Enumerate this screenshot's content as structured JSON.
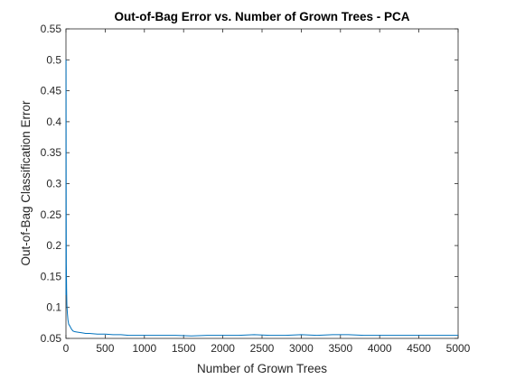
{
  "chart_data": {
    "type": "line",
    "title": "Out-of-Bag Error vs. Number of Grown Trees - PCA",
    "xlabel": "Number of Grown Trees",
    "ylabel": "Out-of-Bag Classification Error",
    "xlim": [
      0,
      5000
    ],
    "ylim": [
      0.05,
      0.55
    ],
    "xticks": [
      0,
      500,
      1000,
      1500,
      2000,
      2500,
      3000,
      3500,
      4000,
      4500,
      5000
    ],
    "yticks": [
      0.05,
      0.1,
      0.15,
      0.2,
      0.25,
      0.3,
      0.35,
      0.4,
      0.45,
      0.5,
      0.55
    ],
    "xtick_labels": [
      "0",
      "500",
      "1000",
      "1500",
      "2000",
      "2500",
      "3000",
      "3500",
      "4000",
      "4500",
      "5000"
    ],
    "ytick_labels": [
      "0.05",
      "0.1",
      "0.15",
      "0.2",
      "0.25",
      "0.3",
      "0.35",
      "0.4",
      "0.45",
      "0.5",
      "0.55"
    ],
    "grid": false,
    "series": [
      {
        "color": "#0072BD",
        "x": [
          1,
          2,
          3,
          5,
          8,
          12,
          18,
          25,
          35,
          50,
          70,
          90,
          110,
          150,
          200,
          250,
          300,
          400,
          500,
          600,
          700,
          800,
          900,
          1000,
          1200,
          1400,
          1600,
          1800,
          2000,
          2200,
          2400,
          2600,
          2800,
          3000,
          3200,
          3400,
          3600,
          3800,
          4000,
          4200,
          4400,
          4600,
          4800,
          5000
        ],
        "y": [
          0.5,
          0.33,
          0.24,
          0.17,
          0.13,
          0.105,
          0.09,
          0.08,
          0.073,
          0.07,
          0.065,
          0.062,
          0.061,
          0.06,
          0.059,
          0.058,
          0.058,
          0.057,
          0.057,
          0.056,
          0.056,
          0.055,
          0.055,
          0.055,
          0.055,
          0.055,
          0.054,
          0.055,
          0.055,
          0.055,
          0.056,
          0.055,
          0.055,
          0.056,
          0.055,
          0.056,
          0.056,
          0.055,
          0.055,
          0.055,
          0.055,
          0.055,
          0.055,
          0.055
        ]
      }
    ]
  }
}
